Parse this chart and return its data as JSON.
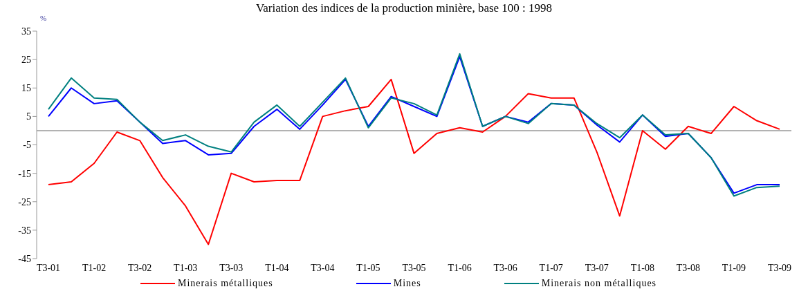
{
  "chart_data": {
    "type": "line",
    "title": "Variation des indices de la production minière, base 100 : 1998",
    "ylabel": "%",
    "categories": [
      "T3-01",
      null,
      "T1-02",
      null,
      "T3-02",
      null,
      "T1-03",
      null,
      "T3-03",
      null,
      "T1-04",
      null,
      "T3-04",
      null,
      "T1-05",
      null,
      "T3-05",
      null,
      "T1-06",
      null,
      "T3-06",
      null,
      "T1-07",
      null,
      "T3-07",
      null,
      "T1-08",
      null,
      "T3-08",
      null,
      "T1-09",
      null,
      "T3-09"
    ],
    "series": [
      {
        "name": "Minerais métalliques",
        "color": "#ff0000",
        "values": [
          -19,
          -18,
          -11.5,
          -0.5,
          -3.5,
          -16.5,
          -26.5,
          -40,
          -15,
          -18,
          -17.5,
          -17.5,
          5,
          7,
          8.5,
          18,
          -8,
          -1,
          1,
          -0.5,
          5,
          13,
          11.5,
          11.5,
          -7.5,
          -30,
          0,
          -6.5,
          1.5,
          -1,
          8.5,
          3.5,
          0.5
        ]
      },
      {
        "name": "Mines",
        "color": "#0000ff",
        "values": [
          5,
          15,
          9.5,
          10.5,
          3,
          -4.5,
          -3.5,
          -8.5,
          -8,
          1.5,
          7.5,
          0.5,
          9,
          18,
          1.5,
          12,
          8.5,
          5,
          26,
          1.5,
          5,
          3,
          9.5,
          9,
          2,
          -4,
          5.5,
          -2,
          -1,
          -9.5,
          -22,
          -19,
          -19
        ]
      },
      {
        "name": "Minerais non métalliques",
        "color": "#008080",
        "values": [
          7.5,
          18.5,
          11.5,
          11,
          3,
          -3.5,
          -1.5,
          -5.5,
          -7.5,
          3,
          9,
          1.5,
          10,
          18.5,
          1,
          11.5,
          9.5,
          5.5,
          27,
          1.5,
          5,
          2.5,
          9.5,
          9,
          2.5,
          -2.5,
          5.5,
          -1.5,
          -1,
          -9.5,
          -23,
          -20,
          -19.5
        ]
      }
    ],
    "ylim": [
      -45,
      35
    ],
    "yticks": [
      -45,
      -35,
      -25,
      -15,
      -5,
      5,
      15,
      25,
      35
    ],
    "grid": false,
    "legend": "bottom",
    "marker": "none",
    "line_style": "solid"
  }
}
